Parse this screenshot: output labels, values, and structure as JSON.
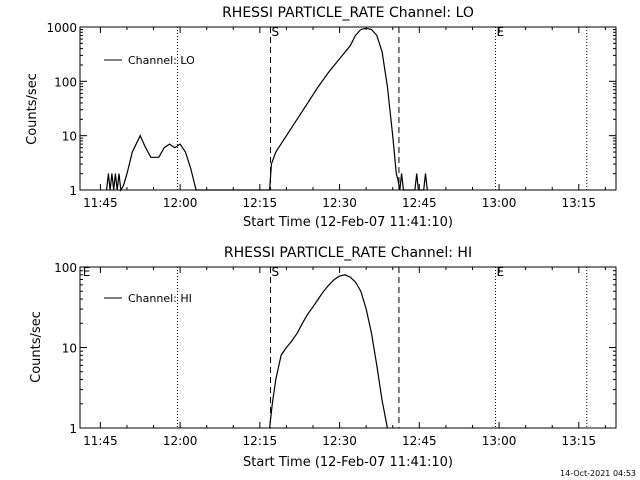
{
  "chart_data": [
    {
      "type": "line",
      "title": "RHESSI PARTICLE_RATE Channel: LO",
      "xlabel": "Start Time (12-Feb-07 11:41:10)",
      "ylabel": "Counts/sec",
      "xscale": "time",
      "xlim": [
        "11:41:10",
        "13:22:00"
      ],
      "ylim": [
        1,
        1000
      ],
      "yscale": "log",
      "yticks": [
        {
          "value": 1,
          "label": "1"
        },
        {
          "value": 10,
          "label": "10"
        },
        {
          "value": 100,
          "label": "100"
        },
        {
          "value": 1000,
          "label": "1000"
        }
      ],
      "xticks": [
        "11:45",
        "12:00",
        "12:15",
        "12:30",
        "12:45",
        "13:00",
        "13:15"
      ],
      "legend": {
        "label": "Channel: LO",
        "placement": "top-left"
      },
      "markers": [
        {
          "label": "S",
          "time": "12:17:00",
          "style": "dashed"
        },
        {
          "label": "",
          "time": "12:41:10",
          "style": "dashed"
        },
        {
          "label": "E",
          "time": "12:59:20",
          "style": "dotted"
        }
      ],
      "dotted_lines": [
        "11:59:30",
        "12:59:20",
        "13:16:30"
      ],
      "series": [
        {
          "name": "Channel: LO",
          "points": [
            [
              "11:46:10",
              1
            ],
            [
              "11:46:30",
              2
            ],
            [
              "11:46:50",
              1
            ],
            [
              "11:47:10",
              2
            ],
            [
              "11:47:30",
              1
            ],
            [
              "11:47:50",
              2
            ],
            [
              "11:48:10",
              1
            ],
            [
              "11:48:30",
              2
            ],
            [
              "11:48:50",
              1
            ],
            [
              "11:49:20",
              1.2
            ],
            [
              "11:50:00",
              2
            ],
            [
              "11:51:00",
              5
            ],
            [
              "11:52:30",
              10
            ],
            [
              "11:53:30",
              6
            ],
            [
              "11:54:30",
              4
            ],
            [
              "11:56:00",
              4
            ],
            [
              "11:57:00",
              6
            ],
            [
              "11:58:00",
              7
            ],
            [
              "11:59:00",
              6
            ],
            [
              "12:00:00",
              7
            ],
            [
              "12:01:00",
              5
            ],
            [
              "12:02:00",
              2.5
            ],
            [
              "12:03:00",
              1
            ],
            [
              "12:16:50",
              1
            ],
            [
              "12:17:10",
              3
            ],
            [
              "12:18:00",
              5
            ],
            [
              "12:20:00",
              10
            ],
            [
              "12:22:00",
              20
            ],
            [
              "12:24:00",
              40
            ],
            [
              "12:26:00",
              80
            ],
            [
              "12:28:00",
              150
            ],
            [
              "12:30:00",
              260
            ],
            [
              "12:32:00",
              450
            ],
            [
              "12:33:00",
              700
            ],
            [
              "12:34:00",
              900
            ],
            [
              "12:35:00",
              950
            ],
            [
              "12:36:00",
              900
            ],
            [
              "12:37:00",
              700
            ],
            [
              "12:38:00",
              350
            ],
            [
              "12:39:00",
              80
            ],
            [
              "12:40:00",
              10
            ],
            [
              "12:40:40",
              2
            ],
            [
              "12:41:00",
              1.5
            ],
            [
              "12:41:20",
              1
            ],
            [
              "12:41:40",
              2
            ],
            [
              "12:42:00",
              1
            ],
            [
              "12:44:10",
              1
            ],
            [
              "12:44:30",
              2
            ],
            [
              "12:44:50",
              1
            ],
            [
              "12:45:50",
              1
            ],
            [
              "12:46:10",
              2
            ],
            [
              "12:46:30",
              1
            ]
          ]
        }
      ],
      "timestamp": "14-Oct-2021 04:53"
    },
    {
      "type": "line",
      "title": "RHESSI PARTICLE_RATE Channel: HI",
      "xlabel": "Start Time (12-Feb-07 11:41:10)",
      "ylabel": "Counts/sec",
      "xscale": "time",
      "xlim": [
        "11:41:10",
        "13:22:00"
      ],
      "ylim": [
        1,
        100
      ],
      "yscale": "log",
      "yticks": [
        {
          "value": 1,
          "label": "1"
        },
        {
          "value": 10,
          "label": "10"
        },
        {
          "value": 100,
          "label": "100"
        }
      ],
      "xticks": [
        "11:45",
        "12:00",
        "12:15",
        "12:30",
        "12:45",
        "13:00",
        "13:15"
      ],
      "legend": {
        "label": "Channel: HI",
        "placement": "top-left"
      },
      "markers": [
        {
          "label": "E",
          "time": "11:41:30",
          "style": "none"
        },
        {
          "label": "S",
          "time": "12:17:00",
          "style": "dashed"
        },
        {
          "label": "",
          "time": "12:41:10",
          "style": "dashed"
        },
        {
          "label": "E",
          "time": "12:59:20",
          "style": "dotted"
        }
      ],
      "dotted_lines": [
        "11:59:30",
        "12:59:20",
        "13:16:30"
      ],
      "series": [
        {
          "name": "Channel: HI",
          "points": [
            [
              "12:16:50",
              1
            ],
            [
              "12:17:20",
              2
            ],
            [
              "12:18:00",
              4
            ],
            [
              "12:19:00",
              8
            ],
            [
              "12:20:00",
              10
            ],
            [
              "12:21:00",
              12
            ],
            [
              "12:22:00",
              15
            ],
            [
              "12:23:00",
              20
            ],
            [
              "12:24:00",
              26
            ],
            [
              "12:25:00",
              32
            ],
            [
              "12:26:00",
              40
            ],
            [
              "12:27:00",
              50
            ],
            [
              "12:28:00",
              60
            ],
            [
              "12:29:00",
              70
            ],
            [
              "12:30:00",
              77
            ],
            [
              "12:31:00",
              80
            ],
            [
              "12:32:00",
              75
            ],
            [
              "12:33:00",
              65
            ],
            [
              "12:34:00",
              50
            ],
            [
              "12:35:00",
              30
            ],
            [
              "12:36:00",
              15
            ],
            [
              "12:37:00",
              6
            ],
            [
              "12:38:00",
              2.2
            ],
            [
              "12:39:00",
              1
            ]
          ]
        }
      ]
    }
  ]
}
